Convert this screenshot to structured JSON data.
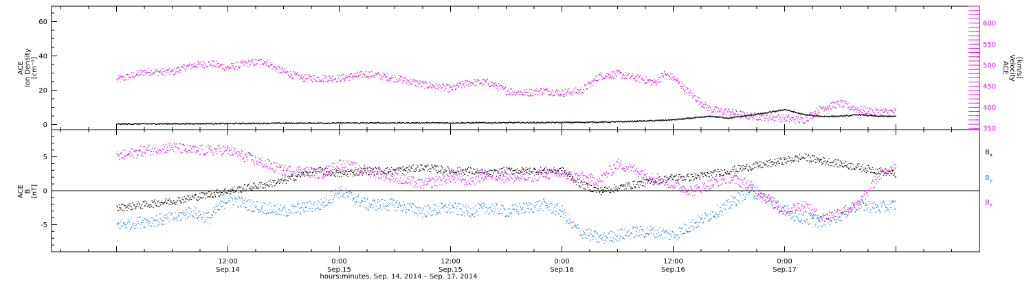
{
  "colors": {
    "black": "#000000",
    "magenta": "#e600e6",
    "blue": "#1f7fd0",
    "axis": "#000000"
  },
  "chart_data": [
    {
      "type": "scatter",
      "panel": "top",
      "ylabel_lines": [
        "ACE",
        "Ion Density",
        "[cm⁻³]"
      ],
      "ylabel2_lines": [
        "ACE",
        "Velocity",
        "[km/s]"
      ],
      "ylim": [
        -3,
        69
      ],
      "y_ticks": [
        0,
        20,
        40,
        60
      ],
      "y2lim": [
        347,
        640
      ],
      "y2_ticks": [
        350,
        400,
        450,
        500,
        550,
        600
      ],
      "series": [
        {
          "color": "black",
          "axis": "left",
          "x": [
            0,
            6,
            12,
            18,
            24,
            30,
            36,
            42,
            48,
            51,
            54,
            58,
            60,
            62,
            64,
            66,
            68,
            70,
            72,
            74,
            76,
            78,
            80,
            82,
            84
          ],
          "y": [
            0.5,
            0.7,
            0.8,
            1,
            1.1,
            1.2,
            1.2,
            1.3,
            1.4,
            1.6,
            1.8,
            2.5,
            3,
            4,
            5,
            4,
            5.5,
            7,
            9,
            6,
            5,
            5,
            6,
            5,
            5
          ]
        },
        {
          "color": "magenta",
          "axis": "right",
          "x": [
            0,
            3,
            6,
            8,
            10,
            12,
            14,
            16,
            17,
            18,
            20,
            22,
            24,
            27,
            30,
            33,
            36,
            38,
            40,
            42,
            44,
            46,
            48,
            50,
            51,
            52,
            54,
            56,
            58,
            59,
            60,
            62,
            64,
            66,
            68,
            70,
            72,
            74,
            76,
            78,
            80,
            82,
            84
          ],
          "y": [
            465,
            485,
            485,
            500,
            505,
            495,
            505,
            510,
            495,
            485,
            470,
            470,
            470,
            480,
            470,
            455,
            445,
            460,
            460,
            440,
            435,
            440,
            435,
            440,
            455,
            475,
            480,
            470,
            460,
            480,
            470,
            430,
            395,
            390,
            380,
            378,
            375,
            370,
            400,
            410,
            395,
            390,
            390
          ]
        }
      ]
    },
    {
      "type": "scatter",
      "panel": "bottom",
      "ylabel_lines": [
        "ACE",
        "B",
        "[nT]"
      ],
      "ylim": [
        -9,
        9
      ],
      "y_ticks": [
        -5,
        0,
        5
      ],
      "legend": [
        "Bx",
        "By",
        "Bz"
      ],
      "series": [
        {
          "name": "Bx",
          "color": "black",
          "x": [
            0,
            3,
            6,
            8,
            10,
            12,
            14,
            16,
            18,
            20,
            22,
            24,
            27,
            30,
            33,
            36,
            38,
            40,
            42,
            44,
            46,
            48,
            50,
            52,
            54,
            56,
            58,
            60,
            62,
            64,
            66,
            68,
            70,
            72,
            74,
            76,
            78,
            80,
            82,
            84
          ],
          "y": [
            -2.5,
            -2,
            -1.5,
            -1,
            -0.5,
            0,
            0.5,
            1,
            1.5,
            2.5,
            3,
            2.5,
            3,
            3,
            3.5,
            3,
            3,
            2.5,
            3,
            3,
            3,
            3,
            1,
            0,
            0.5,
            1,
            1.5,
            2,
            2,
            2.5,
            3,
            3.5,
            4,
            4.5,
            5,
            4.5,
            4,
            3.5,
            3,
            2.5
          ]
        },
        {
          "name": "By",
          "color": "blue",
          "x": [
            0,
            3,
            6,
            8,
            10,
            12,
            14,
            16,
            18,
            20,
            22,
            24,
            27,
            30,
            33,
            36,
            38,
            40,
            42,
            44,
            46,
            48,
            49,
            50,
            52,
            54,
            56,
            58,
            60,
            62,
            64,
            66,
            68,
            70,
            72,
            74,
            76,
            78,
            80,
            82,
            84
          ],
          "y": [
            -5,
            -4.5,
            -4,
            -3,
            -4,
            -1,
            -2,
            -2.5,
            -3,
            -2.5,
            -2,
            0,
            -2,
            -2,
            -3,
            -2.5,
            -3,
            -2.5,
            -3,
            -2.5,
            -2,
            -3,
            -5,
            -6,
            -7,
            -6.5,
            -6,
            -6,
            -6.5,
            -5,
            -3.5,
            -2,
            0,
            -1,
            -3,
            -4,
            -4.5,
            -3.5,
            -2,
            -2.5,
            -2
          ]
        },
        {
          "name": "Bz",
          "color": "magenta",
          "x": [
            0,
            3,
            6,
            8,
            10,
            12,
            14,
            16,
            18,
            20,
            22,
            24,
            27,
            30,
            33,
            36,
            38,
            40,
            42,
            44,
            46,
            48,
            50,
            52,
            54,
            56,
            58,
            60,
            62,
            64,
            66,
            68,
            70,
            72,
            74,
            76,
            78,
            80,
            82,
            84
          ],
          "y": [
            5,
            6,
            6.5,
            6,
            6,
            6,
            5,
            4,
            3,
            3,
            2.5,
            4,
            3,
            2,
            1,
            2,
            1.5,
            2.5,
            2,
            2,
            2.5,
            2.5,
            2,
            1.5,
            4,
            3,
            2,
            1,
            0,
            1,
            2,
            1,
            -1,
            -3,
            -2,
            -4,
            -3,
            -2,
            2,
            4
          ]
        }
      ]
    }
  ],
  "x_axis": {
    "xlim": [
      -7,
      93
    ],
    "major_ticks": [
      {
        "x": 12,
        "time": "12:00",
        "date": "Sep.14"
      },
      {
        "x": 24,
        "time": "0:00",
        "date": "Sep.15"
      },
      {
        "x": 36,
        "time": "12:00",
        "date": "Sep.15"
      },
      {
        "x": 48,
        "time": "0:00",
        "date": "Sep.16"
      },
      {
        "x": 60,
        "time": "12:00",
        "date": "Sep.16"
      },
      {
        "x": 72,
        "time": "0:00",
        "date": "Sep.17"
      }
    ],
    "title": "hours:minutes, Sep. 14, 2014 – Sep. 17, 2014"
  },
  "legend_labels": {
    "bx_main": "B",
    "bx_sub": "x",
    "by_main": "B",
    "by_sub": "y",
    "bz_main": "B",
    "bz_sub": "z"
  }
}
